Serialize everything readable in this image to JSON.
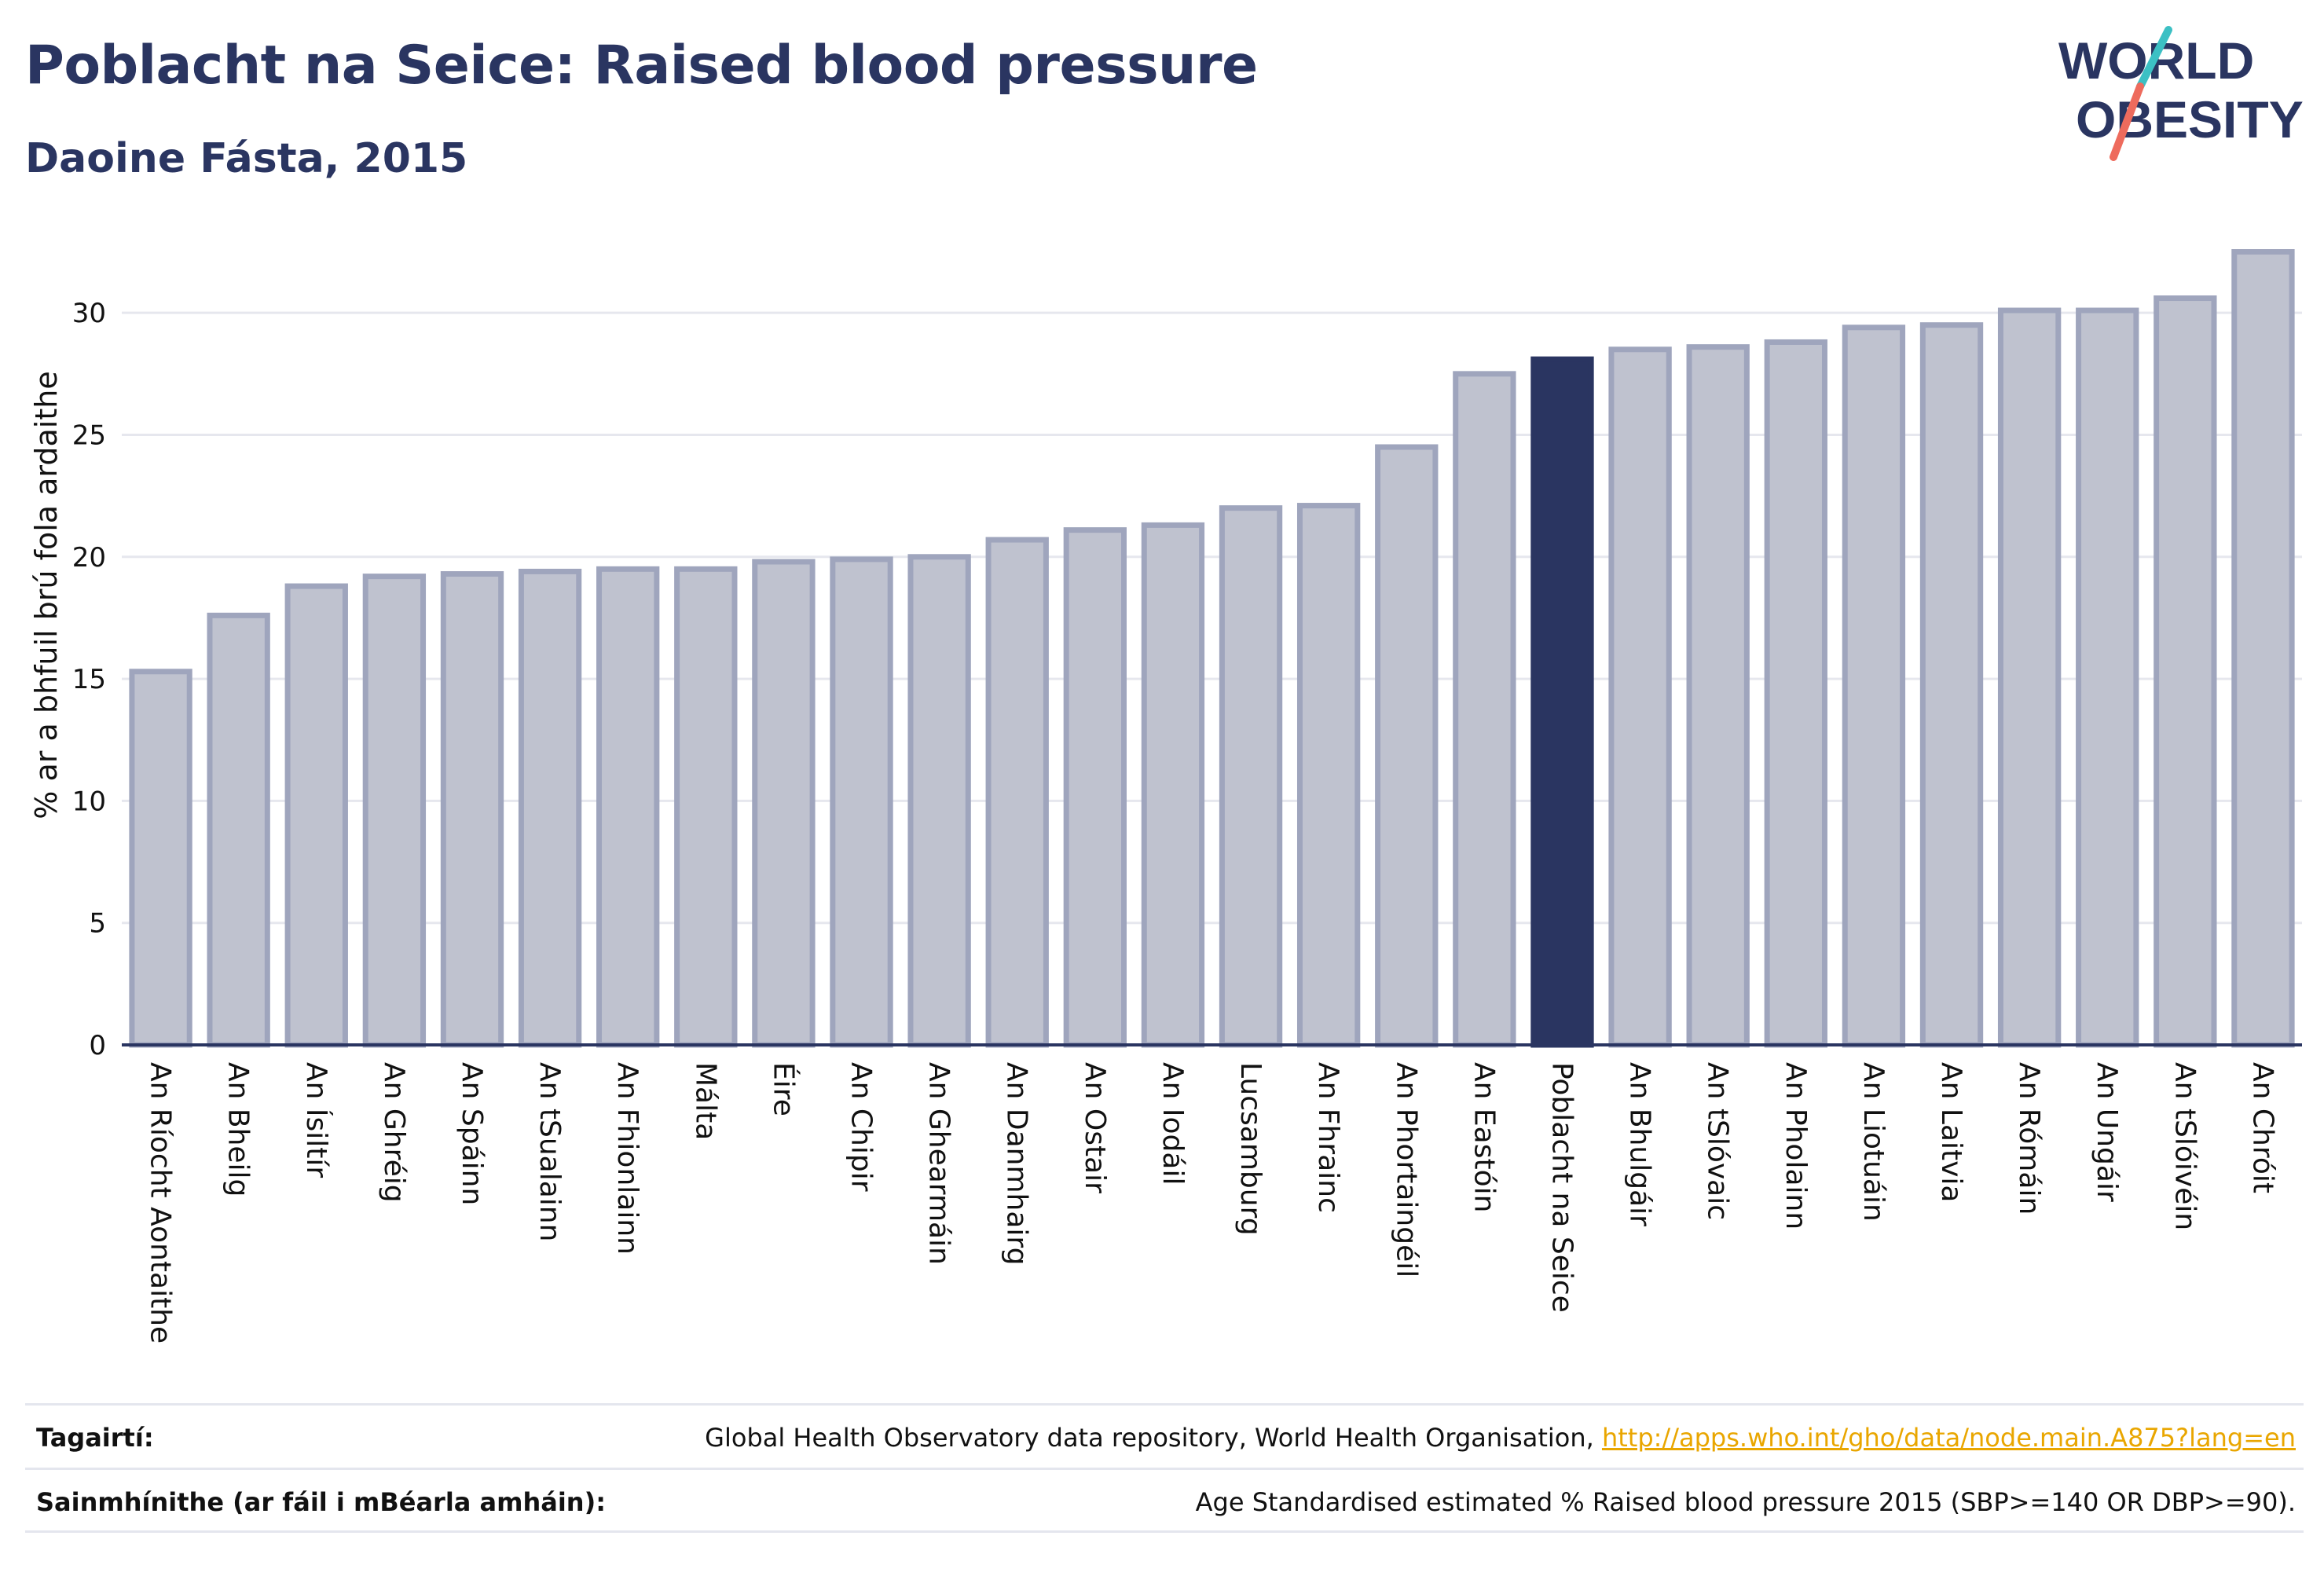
{
  "header": {
    "title": "Poblacht na Seice: Raised blood pressure",
    "subtitle": "Daoine Fásta, 2015"
  },
  "logo": {
    "line1": "WORLD",
    "line2": "OBESITY",
    "colors": {
      "text": "#2a3561",
      "slash_top": "#3cc0c4",
      "slash_bottom": "#ee6b5d"
    }
  },
  "chart_data": {
    "type": "bar",
    "title": "Poblacht na Seice: Raised blood pressure",
    "subtitle": "Daoine Fásta, 2015",
    "xlabel": "",
    "ylabel": "% ar a bhfuil brú fola ardaithe",
    "ylim": [
      0,
      33
    ],
    "yticks": [
      0,
      5,
      10,
      15,
      20,
      25,
      30
    ],
    "grid": true,
    "categories": [
      "An Ríocht Aontaithe",
      "An Bheilg",
      "An Ísiltír",
      "An Ghréig",
      "An Spáinn",
      "An tSualainn",
      "An Fhionlainn",
      "Málta",
      "Éire",
      "An Chipir",
      "An Ghearmáin",
      "An Danmhairg",
      "An Ostair",
      "An Iodáil",
      "Lucsamburg",
      "An Fhrainc",
      "An Phortaingéil",
      "An Eastóin",
      "Poblacht na Seice",
      "An Bhulgáir",
      "An tSlóvaic",
      "An Pholainn",
      "An Liotuáin",
      "An Laitvia",
      "An Rómáin",
      "An Ungáir",
      "An tSlóivéin",
      "An Chróit"
    ],
    "values": [
      15.3,
      17.6,
      18.8,
      19.2,
      19.3,
      19.4,
      19.5,
      19.5,
      19.8,
      19.9,
      20.0,
      20.7,
      21.1,
      21.3,
      22.0,
      22.1,
      24.5,
      27.5,
      28.1,
      28.5,
      28.6,
      28.8,
      29.4,
      29.5,
      30.1,
      30.1,
      30.6,
      32.5
    ],
    "highlight": "Poblacht na Seice",
    "colors": {
      "bar": "#bfc2cf",
      "bar_border": "#9fa5bd",
      "highlight": "#2a3561",
      "grid": "#e6e7ee",
      "axis": "#2a3561"
    }
  },
  "footer": {
    "references_label": "Tagairtí:",
    "references_text": "Global Health Observatory data repository, World Health Organisation, ",
    "references_link": "http://apps.who.int/gho/data/node.main.A875?lang=en",
    "definitions_label": "Sainmhínithe (ar fáil i mBéarla amháin):",
    "definitions_text": "Age Standardised estimated % Raised blood pressure 2015 (SBP>=140 OR DBP>=90)."
  }
}
